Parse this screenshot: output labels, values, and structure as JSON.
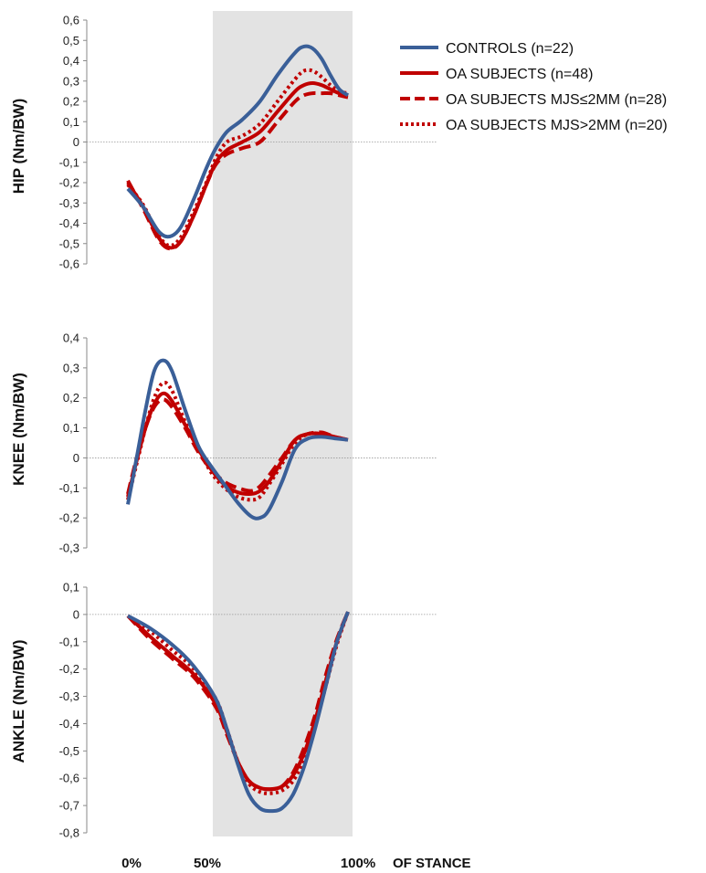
{
  "chart_data": {
    "type": "line",
    "shaded_region": [
      40,
      100
    ],
    "x_tick_labels": [
      "0%",
      "50%",
      "100%"
    ],
    "x_axis_label": "OF STANCE",
    "legend_position": "top-right",
    "colors": {
      "controls": "#3A5F98",
      "oa": "#C00000",
      "shade": "#E3E3E3",
      "zero": "#999999"
    },
    "legend": [
      {
        "id": "controls",
        "label": "CONTROLS (n=22)",
        "color": "#3A5F98",
        "style": "solid"
      },
      {
        "id": "oa",
        "label": "OA SUBJECTS (n=48)",
        "color": "#C00000",
        "style": "solid"
      },
      {
        "id": "mjs_le",
        "label": "OA SUBJECTS MJS≤2MM (n=28)",
        "color": "#C00000",
        "style": "dashed"
      },
      {
        "id": "mjs_gt",
        "label": "OA SUBJECTS MJS>2MM (n=20)",
        "color": "#C00000",
        "style": "dotted"
      }
    ],
    "panels": [
      {
        "id": "hip",
        "ylabel": "HIP (Nm/BW)",
        "ylim": [
          -0.6,
          0.6
        ],
        "yticks": [
          "0,6",
          "0,5",
          "0,4",
          "0,3",
          "0,2",
          "0,1",
          "0",
          "-0,1",
          "-0,2",
          "-0,3",
          "-0,4",
          "-0,5",
          "-0,6"
        ],
        "series": {
          "controls": [
            [
              0,
              -0.23
            ],
            [
              7,
              -0.32
            ],
            [
              14,
              -0.44
            ],
            [
              19,
              -0.465
            ],
            [
              24,
              -0.42
            ],
            [
              30,
              -0.28
            ],
            [
              36,
              -0.12
            ],
            [
              40,
              -0.03
            ],
            [
              45,
              0.05
            ],
            [
              52,
              0.11
            ],
            [
              60,
              0.2
            ],
            [
              68,
              0.33
            ],
            [
              76,
              0.44
            ],
            [
              80,
              0.47
            ],
            [
              84,
              0.46
            ],
            [
              88,
              0.41
            ],
            [
              92,
              0.33
            ],
            [
              96,
              0.26
            ],
            [
              100,
              0.23
            ]
          ],
          "oa": [
            [
              0,
              -0.2
            ],
            [
              7,
              -0.32
            ],
            [
              14,
              -0.47
            ],
            [
              19,
              -0.52
            ],
            [
              24,
              -0.49
            ],
            [
              30,
              -0.36
            ],
            [
              36,
              -0.2
            ],
            [
              40,
              -0.1
            ],
            [
              45,
              -0.04
            ],
            [
              52,
              0.0
            ],
            [
              60,
              0.05
            ],
            [
              68,
              0.15
            ],
            [
              76,
              0.25
            ],
            [
              80,
              0.28
            ],
            [
              84,
              0.29
            ],
            [
              88,
              0.28
            ],
            [
              92,
              0.26
            ],
            [
              96,
              0.24
            ],
            [
              100,
              0.23
            ]
          ],
          "mjs_le": [
            [
              0,
              -0.19
            ],
            [
              7,
              -0.33
            ],
            [
              14,
              -0.48
            ],
            [
              19,
              -0.525
            ],
            [
              24,
              -0.49
            ],
            [
              30,
              -0.36
            ],
            [
              36,
              -0.2
            ],
            [
              40,
              -0.11
            ],
            [
              45,
              -0.06
            ],
            [
              52,
              -0.03
            ],
            [
              60,
              0.0
            ],
            [
              68,
              0.1
            ],
            [
              76,
              0.2
            ],
            [
              80,
              0.23
            ],
            [
              84,
              0.24
            ],
            [
              88,
              0.24
            ],
            [
              92,
              0.24
            ],
            [
              96,
              0.23
            ],
            [
              100,
              0.22
            ]
          ],
          "mjs_gt": [
            [
              0,
              -0.21
            ],
            [
              7,
              -0.31
            ],
            [
              14,
              -0.46
            ],
            [
              19,
              -0.51
            ],
            [
              24,
              -0.47
            ],
            [
              30,
              -0.34
            ],
            [
              36,
              -0.19
            ],
            [
              40,
              -0.08
            ],
            [
              45,
              0.0
            ],
            [
              52,
              0.03
            ],
            [
              60,
              0.09
            ],
            [
              68,
              0.2
            ],
            [
              76,
              0.31
            ],
            [
              80,
              0.35
            ],
            [
              84,
              0.35
            ],
            [
              88,
              0.32
            ],
            [
              92,
              0.28
            ],
            [
              96,
              0.25
            ],
            [
              100,
              0.24
            ]
          ]
        }
      },
      {
        "id": "knee",
        "ylabel": "KNEE (Nm/BW)",
        "ylim": [
          -0.3,
          0.4
        ],
        "yticks": [
          "0,4",
          "0,3",
          "0,2",
          "0,1",
          "0",
          "-0,1",
          "-0,2",
          "-0,3"
        ],
        "series": {
          "controls": [
            [
              0,
              -0.155
            ],
            [
              4,
              0.0
            ],
            [
              8,
              0.16
            ],
            [
              12,
              0.29
            ],
            [
              16,
              0.325
            ],
            [
              20,
              0.29
            ],
            [
              26,
              0.16
            ],
            [
              32,
              0.04
            ],
            [
              38,
              -0.03
            ],
            [
              44,
              -0.09
            ],
            [
              50,
              -0.15
            ],
            [
              56,
              -0.195
            ],
            [
              60,
              -0.2
            ],
            [
              64,
              -0.175
            ],
            [
              70,
              -0.08
            ],
            [
              76,
              0.03
            ],
            [
              82,
              0.065
            ],
            [
              88,
              0.07
            ],
            [
              94,
              0.065
            ],
            [
              100,
              0.06
            ]
          ],
          "oa": [
            [
              0,
              -0.13
            ],
            [
              4,
              -0.01
            ],
            [
              8,
              0.1
            ],
            [
              12,
              0.18
            ],
            [
              16,
              0.215
            ],
            [
              20,
              0.19
            ],
            [
              26,
              0.11
            ],
            [
              32,
              0.03
            ],
            [
              38,
              -0.04
            ],
            [
              44,
              -0.09
            ],
            [
              50,
              -0.115
            ],
            [
              56,
              -0.12
            ],
            [
              60,
              -0.11
            ],
            [
              64,
              -0.08
            ],
            [
              70,
              -0.01
            ],
            [
              76,
              0.06
            ],
            [
              82,
              0.08
            ],
            [
              88,
              0.08
            ],
            [
              94,
              0.07
            ],
            [
              100,
              0.06
            ]
          ],
          "mjs_le": [
            [
              0,
              -0.12
            ],
            [
              4,
              0.0
            ],
            [
              8,
              0.1
            ],
            [
              12,
              0.17
            ],
            [
              16,
              0.195
            ],
            [
              20,
              0.17
            ],
            [
              26,
              0.1
            ],
            [
              32,
              0.02
            ],
            [
              38,
              -0.04
            ],
            [
              44,
              -0.08
            ],
            [
              50,
              -0.1
            ],
            [
              56,
              -0.11
            ],
            [
              60,
              -0.095
            ],
            [
              64,
              -0.06
            ],
            [
              70,
              0.0
            ],
            [
              76,
              0.06
            ],
            [
              82,
              0.08
            ],
            [
              88,
              0.085
            ],
            [
              94,
              0.07
            ],
            [
              100,
              0.06
            ]
          ],
          "mjs_gt": [
            [
              0,
              -0.14
            ],
            [
              4,
              -0.02
            ],
            [
              8,
              0.1
            ],
            [
              12,
              0.2
            ],
            [
              16,
              0.25
            ],
            [
              20,
              0.225
            ],
            [
              26,
              0.12
            ],
            [
              32,
              0.03
            ],
            [
              38,
              -0.05
            ],
            [
              44,
              -0.1
            ],
            [
              50,
              -0.13
            ],
            [
              56,
              -0.14
            ],
            [
              60,
              -0.13
            ],
            [
              64,
              -0.09
            ],
            [
              70,
              -0.02
            ],
            [
              76,
              0.05
            ],
            [
              82,
              0.08
            ],
            [
              88,
              0.08
            ],
            [
              94,
              0.07
            ],
            [
              100,
              0.06
            ]
          ]
        }
      },
      {
        "id": "ankle",
        "ylabel": "ANKLE (Nm/BW)",
        "ylim": [
          -0.8,
          0.1
        ],
        "yticks": [
          "0,1",
          "0",
          "-0,1",
          "-0,2",
          "-0,3",
          "-0,4",
          "-0,5",
          "-0,6",
          "-0,7",
          "-0,8"
        ],
        "series": {
          "controls": [
            [
              0,
              -0.005
            ],
            [
              10,
              -0.05
            ],
            [
              20,
              -0.11
            ],
            [
              30,
              -0.19
            ],
            [
              40,
              -0.31
            ],
            [
              45,
              -0.42
            ],
            [
              50,
              -0.55
            ],
            [
              55,
              -0.66
            ],
            [
              60,
              -0.71
            ],
            [
              65,
              -0.72
            ],
            [
              70,
              -0.71
            ],
            [
              75,
              -0.66
            ],
            [
              80,
              -0.56
            ],
            [
              85,
              -0.42
            ],
            [
              90,
              -0.26
            ],
            [
              95,
              -0.1
            ],
            [
              100,
              0.01
            ]
          ],
          "oa": [
            [
              0,
              -0.005
            ],
            [
              10,
              -0.08
            ],
            [
              20,
              -0.15
            ],
            [
              30,
              -0.22
            ],
            [
              40,
              -0.33
            ],
            [
              45,
              -0.43
            ],
            [
              50,
              -0.54
            ],
            [
              55,
              -0.61
            ],
            [
              60,
              -0.635
            ],
            [
              65,
              -0.64
            ],
            [
              70,
              -0.63
            ],
            [
              75,
              -0.59
            ],
            [
              80,
              -0.51
            ],
            [
              85,
              -0.39
            ],
            [
              90,
              -0.24
            ],
            [
              95,
              -0.1
            ],
            [
              100,
              0.01
            ]
          ],
          "mjs_le": [
            [
              0,
              -0.005
            ],
            [
              10,
              -0.09
            ],
            [
              20,
              -0.16
            ],
            [
              30,
              -0.23
            ],
            [
              40,
              -0.34
            ],
            [
              45,
              -0.44
            ],
            [
              50,
              -0.54
            ],
            [
              55,
              -0.61
            ],
            [
              60,
              -0.635
            ],
            [
              65,
              -0.64
            ],
            [
              70,
              -0.63
            ],
            [
              75,
              -0.58
            ],
            [
              80,
              -0.49
            ],
            [
              85,
              -0.37
            ],
            [
              90,
              -0.22
            ],
            [
              95,
              -0.09
            ],
            [
              100,
              0.01
            ]
          ],
          "mjs_gt": [
            [
              0,
              -0.005
            ],
            [
              10,
              -0.06
            ],
            [
              20,
              -0.13
            ],
            [
              30,
              -0.2
            ],
            [
              40,
              -0.31
            ],
            [
              45,
              -0.42
            ],
            [
              50,
              -0.54
            ],
            [
              55,
              -0.62
            ],
            [
              60,
              -0.65
            ],
            [
              65,
              -0.655
            ],
            [
              70,
              -0.645
            ],
            [
              75,
              -0.61
            ],
            [
              80,
              -0.53
            ],
            [
              85,
              -0.41
            ],
            [
              90,
              -0.26
            ],
            [
              95,
              -0.11
            ],
            [
              100,
              0.01
            ]
          ]
        }
      }
    ]
  }
}
